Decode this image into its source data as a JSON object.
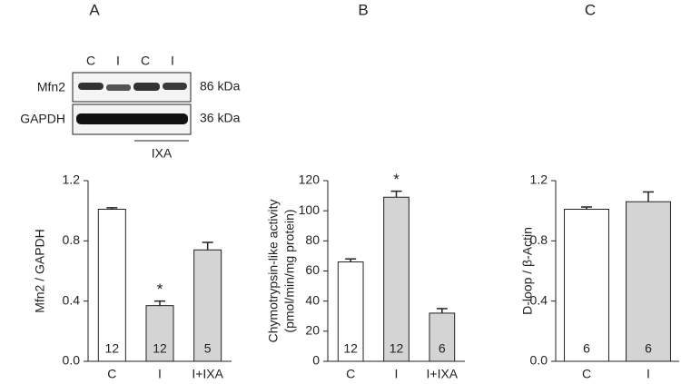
{
  "blot": {
    "lanes": [
      "C",
      "I",
      "C",
      "I"
    ],
    "rows": [
      {
        "label": "Mfn2",
        "size": "86 kDa"
      },
      {
        "label": "GAPDH",
        "size": "36 kDa"
      }
    ],
    "group_label": "IXA"
  },
  "chart_data": [
    {
      "type": "bar",
      "panel_label": "A",
      "y_label": [
        "Mfn2 / GAPDH"
      ],
      "categories": [
        "C",
        "I",
        "I+IXA"
      ],
      "values": [
        1.01,
        0.37,
        0.74
      ],
      "errors": [
        0.01,
        0.03,
        0.05
      ],
      "n": [
        12,
        12,
        5
      ],
      "colors": [
        "#ffffff",
        "#d4d4d4",
        "#d4d4d4"
      ],
      "annotations": [
        {
          "text": "*",
          "x": "I"
        }
      ],
      "ylim": [
        0,
        1.2
      ],
      "yticks": [
        {
          "value": 0,
          "label": "0.0"
        },
        0.4,
        0.8,
        1.2
      ]
    },
    {
      "type": "bar",
      "panel_label": "B",
      "y_label": [
        "Chymotrypsin-like activity",
        "(pmol/min/mg protein)"
      ],
      "categories": [
        "C",
        "I",
        "I+IXA"
      ],
      "values": [
        66,
        109,
        32
      ],
      "errors": [
        2,
        4,
        3
      ],
      "n": [
        12,
        12,
        6
      ],
      "colors": [
        "#ffffff",
        "#d4d4d4",
        "#d4d4d4"
      ],
      "annotations": [
        {
          "text": "*",
          "x": "I"
        }
      ],
      "ylim": [
        0,
        120
      ],
      "yticks": [
        0,
        20,
        40,
        60,
        80,
        100,
        120
      ]
    },
    {
      "type": "bar",
      "panel_label": "C",
      "y_label": [
        "D-loop / β-Actin"
      ],
      "categories": [
        "C",
        "I"
      ],
      "values": [
        1.01,
        1.06
      ],
      "errors": [
        0.015,
        0.065
      ],
      "n": [
        6,
        6
      ],
      "colors": [
        "#ffffff",
        "#d4d4d4"
      ],
      "ylim": [
        0,
        1.2
      ],
      "yticks": [
        {
          "value": 0,
          "label": "0.0"
        },
        0.4,
        0.8,
        1.2
      ]
    }
  ]
}
